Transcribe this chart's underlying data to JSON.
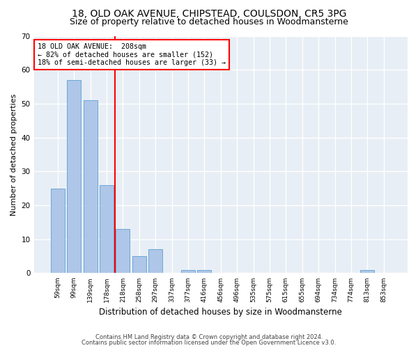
{
  "title": "18, OLD OAK AVENUE, CHIPSTEAD, COULSDON, CR5 3PG",
  "subtitle": "Size of property relative to detached houses in Woodmansterne",
  "xlabel": "Distribution of detached houses by size in Woodmansterne",
  "ylabel": "Number of detached properties",
  "categories": [
    "59sqm",
    "99sqm",
    "139sqm",
    "178sqm",
    "218sqm",
    "258sqm",
    "297sqm",
    "337sqm",
    "377sqm",
    "416sqm",
    "456sqm",
    "496sqm",
    "535sqm",
    "575sqm",
    "615sqm",
    "655sqm",
    "694sqm",
    "734sqm",
    "774sqm",
    "813sqm",
    "853sqm"
  ],
  "values": [
    25,
    57,
    51,
    26,
    13,
    5,
    7,
    0,
    1,
    1,
    0,
    0,
    0,
    0,
    0,
    0,
    0,
    0,
    0,
    1,
    0
  ],
  "bar_color": "#aec6e8",
  "bar_edge_color": "#5a9fd4",
  "annotation_line1": "18 OLD OAK AVENUE:  208sqm",
  "annotation_line2": "← 82% of detached houses are smaller (152)",
  "annotation_line3": "18% of semi-detached houses are larger (33) →",
  "annotation_box_color": "white",
  "annotation_box_edge_color": "red",
  "red_line_color": "red",
  "ylim": [
    0,
    70
  ],
  "yticks": [
    0,
    10,
    20,
    30,
    40,
    50,
    60,
    70
  ],
  "footer1": "Contains HM Land Registry data © Crown copyright and database right 2024.",
  "footer2": "Contains public sector information licensed under the Open Government Licence v3.0.",
  "bg_color": "#e8eef5",
  "grid_color": "white",
  "title_fontsize": 10,
  "subtitle_fontsize": 9
}
